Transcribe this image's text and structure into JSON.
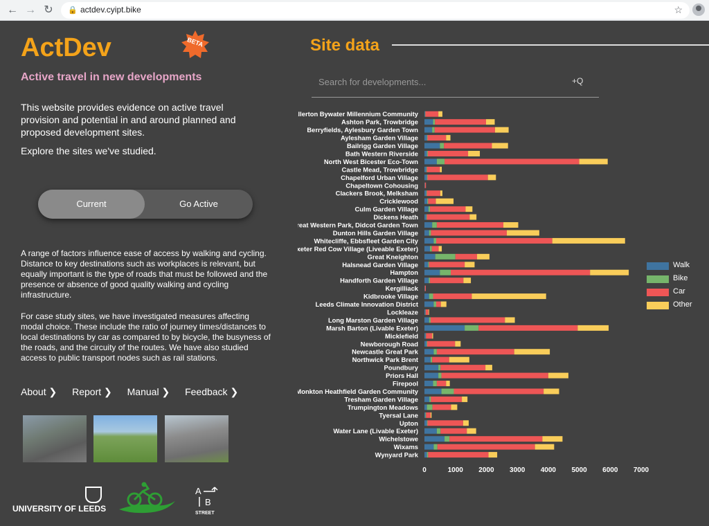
{
  "browser": {
    "url": "actdev.cyipt.bike",
    "back_icon": "←",
    "forward_icon": "→",
    "reload_icon": "↻",
    "star_icon": "☆"
  },
  "header": {
    "brand": "ActDev",
    "beta": "BETA",
    "subtitle": "Active travel in new developments"
  },
  "intro": {
    "text": "This website provides evidence on active travel provision and potential in and around planned and proposed development sites.",
    "explore": "Explore the sites we've studied."
  },
  "toggle": {
    "current": "Current",
    "go_active": "Go Active"
  },
  "paragraphs": {
    "p1": "A range of factors influence ease of access by walking and cycling. Distance to key destinations such as workplaces is relevant, but equally important is the type of roads that must be followed and the presence or absence of good quality walking and cycling infrastructure.",
    "p2": "For case study sites, we have investigated measures affecting modal choice. These include the ratio of journey times/distances to local destinations by car as compared to by bicycle, the busyness of the roads, and the circuity of the routes. We have also studied access to public transport nodes such as rail stations."
  },
  "links": [
    "About ❯",
    "Report ❯",
    "Manual ❯",
    "Feedback ❯"
  ],
  "logos": {
    "leeds": "UNIVERSITY OF LEEDS",
    "ab_street": "STREET"
  },
  "site_data": {
    "title": "Site data",
    "search_placeholder": "Search for developments...",
    "search_icon": "+Q"
  },
  "colors": {
    "Walk": "#3f74a0",
    "Bike": "#76b56b",
    "Car": "#ee5656",
    "Other": "#f9cd5a"
  },
  "chart_data": {
    "type": "bar",
    "orientation": "horizontal",
    "stacked": true,
    "xlim": [
      0,
      7000
    ],
    "xticks": [
      0,
      1000,
      2000,
      3000,
      4000,
      5000,
      6000,
      7000
    ],
    "legend": "right",
    "categories": [
      "Allerton Bywater Millennium Community",
      "Ashton Park, Trowbridge",
      "Berryfields, Aylesbury Garden Town",
      "Aylesham Garden Village",
      "Bailrigg Garden Village",
      "Bath Western Riverside",
      "North West Bicester Eco-Town",
      "Castle Mead, Trowbridge",
      "Chapelford Urban Village",
      "Chapeltown Cohousing",
      "Clackers Brook, Melksham",
      "Cricklewood",
      "Culm Garden Village",
      "Dickens Heath",
      "Great Western Park, Didcot Garden Town",
      "Dunton Hills Garden Village",
      "Whitecliffe, Ebbsfleet Garden City",
      "Exeter Red Cow Village (Liveable Exeter)",
      "Great Kneighton",
      "Halsnead Garden Village",
      "Hampton",
      "Handforth Garden Village",
      "Kergilliack",
      "Kidbrooke Village",
      "Leeds Climate Innovation District",
      "Lockleaze",
      "Long Marston Garden Village",
      "Marsh Barton (Livable Exeter)",
      "Micklefield",
      "Newborough Road",
      "Newcastle Great Park",
      "Northwick Park Brent",
      "Poundbury",
      "Priors Hall",
      "Firepool",
      "Monkton Heathfield Garden Community",
      "Tresham Garden Village",
      "Trumpington Meadows",
      "Tyersal Lane",
      "Upton",
      "Water Lane (Livable Exeter)",
      "Wichelstowe",
      "Wixams",
      "Wynyard Park"
    ],
    "series": [
      {
        "name": "Walk",
        "values": [
          20,
          280,
          250,
          80,
          500,
          80,
          400,
          60,
          80,
          10,
          60,
          90,
          130,
          60,
          250,
          150,
          300,
          180,
          350,
          120,
          500,
          140,
          10,
          150,
          300,
          30,
          150,
          1300,
          40,
          70,
          300,
          200,
          450,
          450,
          280,
          550,
          160,
          80,
          30,
          80,
          400,
          650,
          300,
          80
        ]
      },
      {
        "name": "Bike",
        "values": [
          10,
          60,
          80,
          20,
          130,
          30,
          250,
          20,
          20,
          5,
          20,
          30,
          50,
          20,
          150,
          60,
          80,
          60,
          650,
          30,
          350,
          40,
          5,
          130,
          80,
          10,
          50,
          450,
          10,
          20,
          100,
          50,
          70,
          100,
          120,
          400,
          50,
          180,
          20,
          20,
          120,
          160,
          120,
          40
        ]
      },
      {
        "name": "Car",
        "values": [
          420,
          1650,
          1950,
          600,
          1550,
          1300,
          4350,
          420,
          1950,
          35,
          430,
          250,
          1150,
          1380,
          2150,
          2450,
          3750,
          220,
          700,
          1150,
          4500,
          1080,
          30,
          1250,
          150,
          90,
          2400,
          3200,
          200,
          900,
          2500,
          550,
          1450,
          3450,
          300,
          2900,
          1000,
          600,
          150,
          1150,
          850,
          3000,
          3150,
          1950
        ]
      },
      {
        "name": "Other",
        "values": [
          130,
          280,
          440,
          140,
          520,
          380,
          920,
          60,
          260,
          0,
          70,
          570,
          220,
          220,
          480,
          1050,
          2350,
          100,
          400,
          320,
          1250,
          240,
          0,
          2400,
          180,
          20,
          320,
          1000,
          30,
          180,
          1150,
          650,
          220,
          650,
          120,
          500,
          180,
          200,
          30,
          180,
          300,
          650,
          620,
          280
        ]
      }
    ]
  }
}
